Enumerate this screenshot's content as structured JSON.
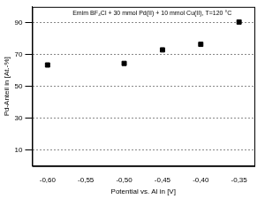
{
  "chart_data": {
    "type": "scatter",
    "title": "Emim BF₄Cl + 30 mmol Pd(II) + 10 mmol Cu(II), T=120 °C",
    "x_label": "Potential vs. Al in [V]",
    "y_label": "Pd-Anteil in [At.-%]",
    "x": [
      -0.6,
      -0.5,
      -0.45,
      -0.4,
      -0.35
    ],
    "values": [
      63.5,
      64.5,
      73,
      76.5,
      90.5
    ],
    "color": "#000000",
    "marker": "square",
    "xlim": [
      -0.62,
      -0.33
    ],
    "xticks": [
      {
        "value": -0.6,
        "label": "-0,60"
      },
      {
        "value": -0.55,
        "label": "-0,55"
      },
      {
        "value": -0.5,
        "label": "-0,50"
      },
      {
        "value": -0.45,
        "label": "-0,45"
      },
      {
        "value": -0.4,
        "label": "-0,40"
      },
      {
        "value": -0.35,
        "label": "-0,35"
      }
    ],
    "ylim": [
      0,
      100
    ],
    "yticks": [
      10,
      30,
      50,
      70,
      90
    ],
    "grid": true
  }
}
